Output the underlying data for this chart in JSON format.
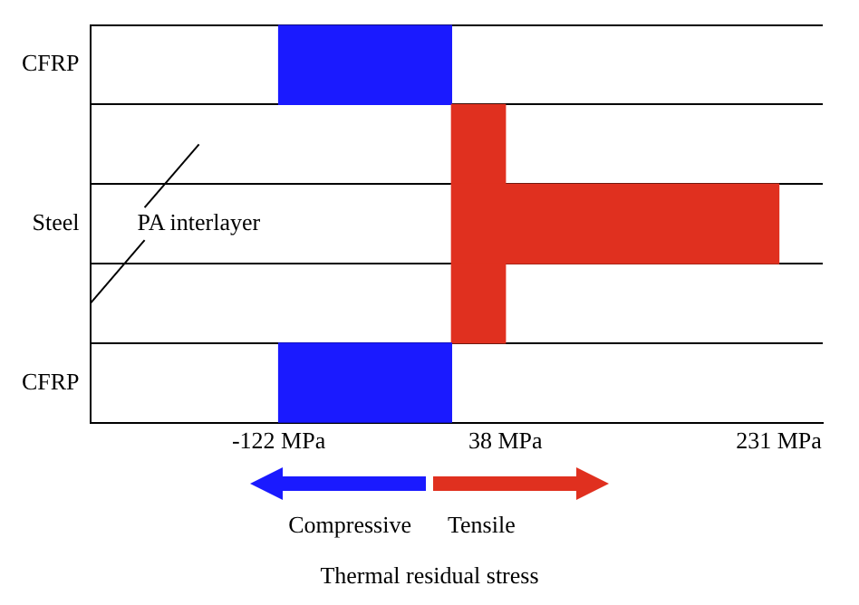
{
  "chart_data": {
    "type": "bar",
    "orientation": "horizontal",
    "categories": [
      "CFRP",
      null,
      "Steel",
      null,
      "CFRP"
    ],
    "values": [
      -122,
      38,
      231,
      38,
      -122
    ],
    "colors": [
      "#1a1aff",
      "#e0301f",
      "#e0301f",
      "#e0301f",
      "#1a1aff"
    ],
    "xlim": [
      -255,
      262
    ],
    "xticks": [
      {
        "value": -122,
        "label": "-122 MPa"
      },
      {
        "value": 38,
        "label": "38 MPa"
      },
      {
        "value": 231,
        "label": "231 MPa"
      }
    ],
    "xlabel": "Thermal residual stress",
    "annotations": [
      "PA interlayer",
      "Compressive",
      "Tensile"
    ],
    "grid": "y",
    "legend": false
  }
}
